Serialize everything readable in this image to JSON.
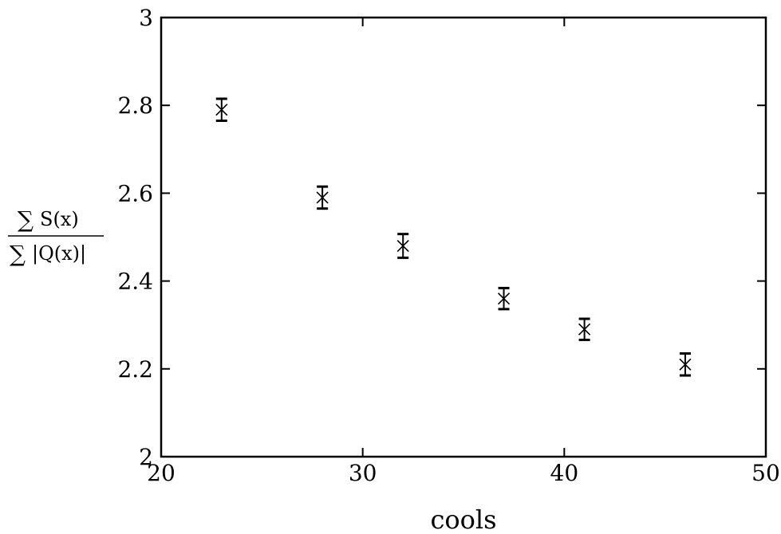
{
  "chart_data": {
    "type": "scatter",
    "xlabel": "cools",
    "ylabel": {
      "numerator": "S(x)",
      "denominator": "|Q(x)|",
      "operator": "∑"
    },
    "xlim": [
      20,
      50
    ],
    "ylim": [
      2.0,
      3.0
    ],
    "xticks": [
      20,
      30,
      40,
      50
    ],
    "yticks": [
      2.0,
      2.2,
      2.4,
      2.6,
      2.8,
      3.0
    ],
    "xtick_labels": [
      "20",
      "30",
      "40",
      "50"
    ],
    "ytick_labels": [
      "2",
      "2.2",
      "2.4",
      "2.6",
      "2.8",
      "3"
    ],
    "grid": false,
    "marker": "x",
    "color": "#000000",
    "series": [
      {
        "x": [
          23,
          28,
          32,
          37,
          41,
          46
        ],
        "y": [
          2.79,
          2.59,
          2.48,
          2.36,
          2.29,
          2.21
        ],
        "err": [
          0.025,
          0.025,
          0.027,
          0.024,
          0.024,
          0.025
        ]
      }
    ]
  }
}
